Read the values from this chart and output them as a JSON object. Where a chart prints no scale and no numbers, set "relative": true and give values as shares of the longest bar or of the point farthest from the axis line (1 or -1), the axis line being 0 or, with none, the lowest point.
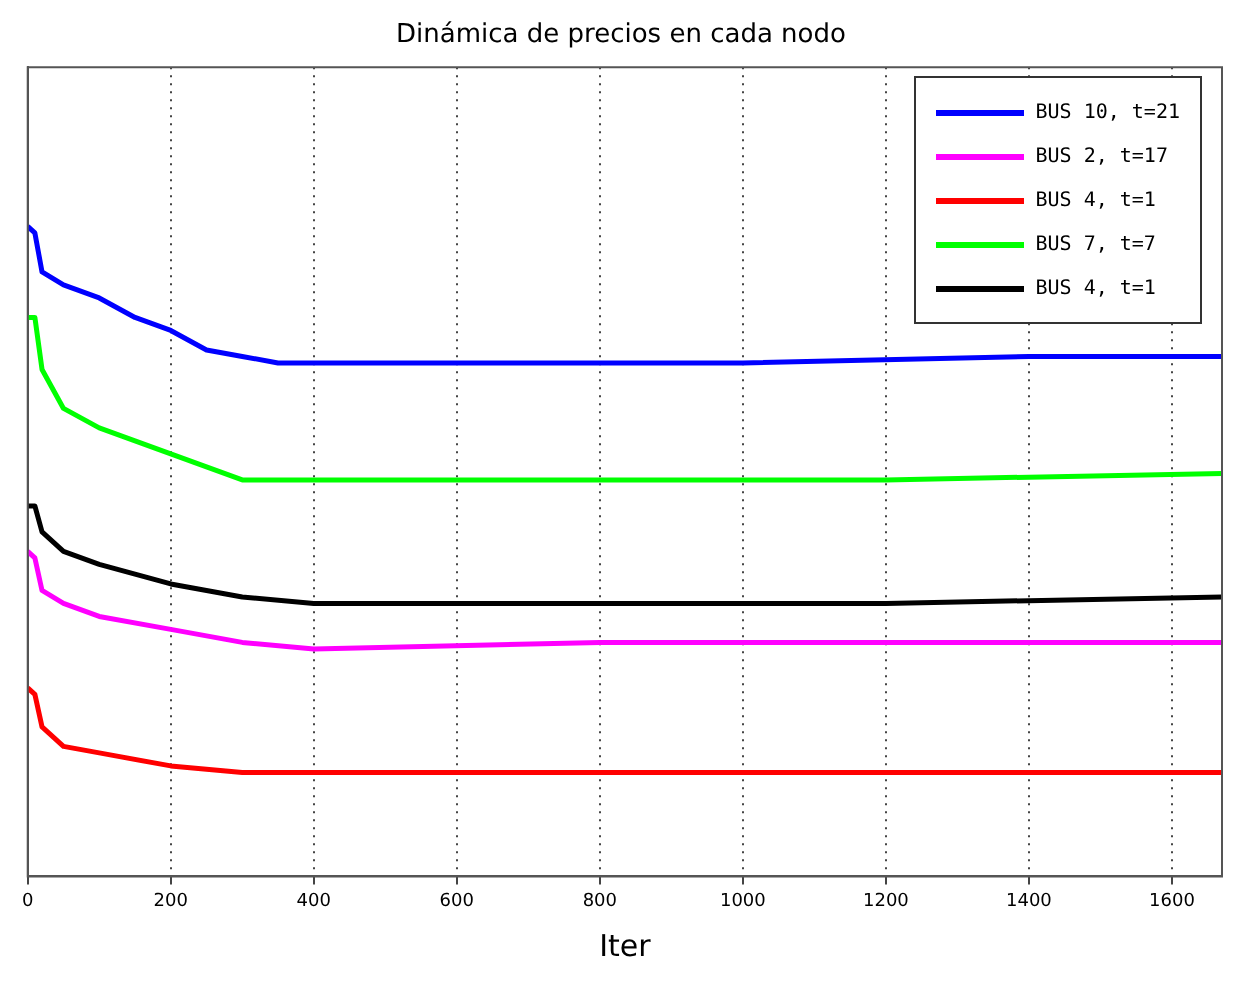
{
  "chart_data": {
    "type": "line",
    "title": "Dinámica de precios en cada nodo",
    "xlabel": "Iter",
    "relative": true,
    "xlim": [
      0,
      1670
    ],
    "xticks": [
      0,
      200,
      400,
      600,
      800,
      1000,
      1200,
      1400,
      1600
    ],
    "grid": "x",
    "legend": "top right",
    "marker": "none",
    "line_style": "solid",
    "series": [
      {
        "name": "BUS 10, t=21",
        "color": "#0000ff",
        "x": [
          0,
          10,
          20,
          50,
          100,
          150,
          200,
          250,
          300,
          350,
          400,
          600,
          1000,
          1400,
          1670
        ],
        "values": [
          1.0,
          0.99,
          0.93,
          0.91,
          0.89,
          0.86,
          0.84,
          0.81,
          0.8,
          0.79,
          0.79,
          0.79,
          0.79,
          0.8,
          0.8
        ]
      },
      {
        "name": "BUS 2, t=17",
        "color": "#ff00ff",
        "x": [
          0,
          10,
          20,
          50,
          100,
          200,
          300,
          400,
          800,
          1200,
          1670
        ],
        "values": [
          0.5,
          0.49,
          0.44,
          0.42,
          0.4,
          0.38,
          0.36,
          0.35,
          0.36,
          0.36,
          0.36
        ]
      },
      {
        "name": "BUS 4, t=1",
        "color": "#ff0000",
        "x": [
          0,
          10,
          20,
          50,
          100,
          200,
          300,
          400,
          800,
          1200,
          1670
        ],
        "values": [
          0.29,
          0.28,
          0.23,
          0.2,
          0.19,
          0.17,
          0.16,
          0.16,
          0.16,
          0.16,
          0.16
        ]
      },
      {
        "name": "BUS 7, t=7",
        "color": "#00ff00",
        "x": [
          0,
          10,
          20,
          50,
          100,
          150,
          200,
          250,
          300,
          350,
          400,
          800,
          1200,
          1670
        ],
        "values": [
          0.86,
          0.86,
          0.78,
          0.72,
          0.69,
          0.67,
          0.65,
          0.63,
          0.61,
          0.61,
          0.61,
          0.61,
          0.61,
          0.62
        ]
      },
      {
        "name": "BUS 4, t=1",
        "color": "#000000",
        "x": [
          0,
          10,
          20,
          50,
          100,
          200,
          300,
          400,
          800,
          1200,
          1670
        ],
        "values": [
          0.57,
          0.57,
          0.53,
          0.5,
          0.48,
          0.45,
          0.43,
          0.42,
          0.42,
          0.42,
          0.43
        ]
      }
    ]
  }
}
